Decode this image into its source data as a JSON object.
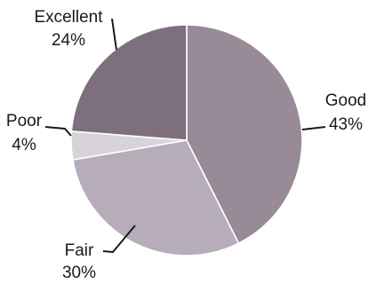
{
  "chart_data": {
    "type": "pie",
    "title": "",
    "slices": [
      {
        "label": "Good",
        "value": 43,
        "display": "43%",
        "color": "#998a98"
      },
      {
        "label": "Fair",
        "value": 30,
        "display": "30%",
        "color": "#b7acba"
      },
      {
        "label": "Poor",
        "value": 4,
        "display": "4%",
        "color": "#d8d3d9"
      },
      {
        "label": "Excellent",
        "value": 24,
        "display": "24%",
        "color": "#7d6f7e"
      }
    ],
    "start_angle_deg": 0,
    "direction": "clockwise",
    "legend": "none",
    "slice_border_color": "#ffffff"
  }
}
